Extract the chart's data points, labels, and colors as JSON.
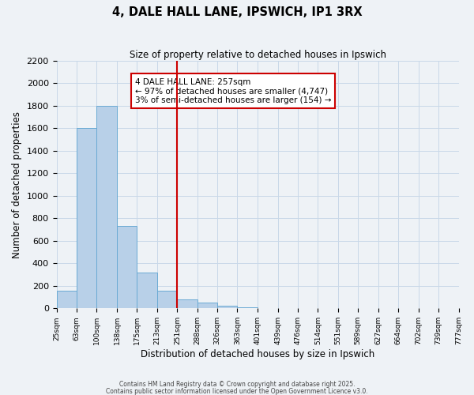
{
  "title": "4, DALE HALL LANE, IPSWICH, IP1 3RX",
  "subtitle": "Size of property relative to detached houses in Ipswich",
  "xlabel": "Distribution of detached houses by size in Ipswich",
  "ylabel": "Number of detached properties",
  "bar_edges": [
    25,
    63,
    100,
    138,
    175,
    213,
    251,
    288,
    326,
    363,
    401,
    439,
    476,
    514,
    551,
    589,
    627,
    664,
    702,
    739,
    777
  ],
  "bar_heights": [
    160,
    1600,
    1800,
    730,
    320,
    160,
    80,
    50,
    25,
    10,
    0,
    0,
    0,
    0,
    0,
    0,
    0,
    0,
    0,
    0
  ],
  "bar_color": "#b8d0e8",
  "bar_edge_color": "#6aaad4",
  "vline_x": 251,
  "vline_color": "#cc0000",
  "ylim": [
    0,
    2200
  ],
  "yticks": [
    0,
    200,
    400,
    600,
    800,
    1000,
    1200,
    1400,
    1600,
    1800,
    2000,
    2200
  ],
  "tick_labels": [
    "25sqm",
    "63sqm",
    "100sqm",
    "138sqm",
    "175sqm",
    "213sqm",
    "251sqm",
    "288sqm",
    "326sqm",
    "363sqm",
    "401sqm",
    "439sqm",
    "476sqm",
    "514sqm",
    "551sqm",
    "589sqm",
    "627sqm",
    "664sqm",
    "702sqm",
    "739sqm",
    "777sqm"
  ],
  "annotation_title": "4 DALE HALL LANE: 257sqm",
  "annotation_line1": "← 97% of detached houses are smaller (4,747)",
  "annotation_line2": "3% of semi-detached houses are larger (154) →",
  "footnote1": "Contains HM Land Registry data © Crown copyright and database right 2025.",
  "footnote2": "Contains public sector information licensed under the Open Government Licence v3.0.",
  "grid_color": "#c8d8e8",
  "background_color": "#eef2f6"
}
